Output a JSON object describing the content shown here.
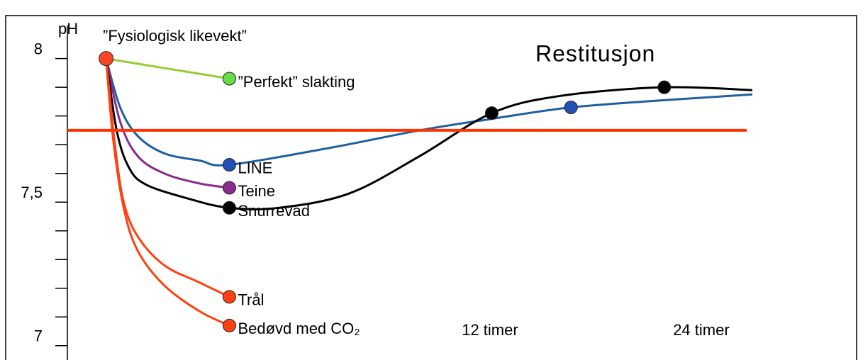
{
  "chart_data": {
    "type": "line",
    "title": "Restitusjon",
    "y_label": "pH",
    "start_label": "”Fysiologisk likevekt”",
    "ylim": [
      6.95,
      8.13
    ],
    "yticks": [
      7,
      {
        "value": 7.5,
        "label": "7,5"
      },
      8
    ],
    "yminor": [
      7.1,
      7.2,
      7.3,
      7.4,
      7.6,
      7.7,
      7.8,
      7.9
    ],
    "xlim": [
      -12,
      32.5
    ],
    "xticks": [
      {
        "value": 12,
        "label": "12 timer"
      },
      {
        "value": 24,
        "label": "24 timer"
      }
    ],
    "start": {
      "x": -9.8,
      "value": 8,
      "color": "#ff4422"
    },
    "hline": {
      "value": 7.75,
      "color": "#ff3300"
    },
    "series": [
      {
        "name": "”Perfekt” slakting",
        "color": "#99cc33",
        "marker_color": "#66dd44",
        "x": [
          -9.8,
          -2.8
        ],
        "values": [
          8,
          7.93
        ],
        "markers": [
          1
        ]
      },
      {
        "name": "LINE",
        "color": "#1f5fa0",
        "marker_color": "#2050b8",
        "x": [
          -9.8,
          -9,
          -8,
          -6.5,
          -4.5,
          -2.8,
          3,
          8,
          12.1,
          16.6,
          21.9,
          26.9
        ],
        "values": [
          8,
          7.83,
          7.73,
          7.67,
          7.645,
          7.63,
          7.69,
          7.75,
          7.79,
          7.83,
          7.855,
          7.875
        ],
        "markers": [
          5,
          9
        ]
      },
      {
        "name": "Teine",
        "color": "#8b2a8b",
        "marker_color": "#8b2a8b",
        "x": [
          -9.8,
          -9,
          -8,
          -6.5,
          -4.5,
          -2.8
        ],
        "values": [
          8,
          7.78,
          7.66,
          7.6,
          7.565,
          7.55
        ],
        "markers": [
          5
        ]
      },
      {
        "name": "Snurrevad",
        "color": "#000000",
        "marker_color": "#000000",
        "x": [
          -9.8,
          -9.2,
          -8.5,
          -7.5,
          -5,
          -2.8,
          0,
          4,
          8,
          12.1,
          16,
          21.9,
          26.9
        ],
        "values": [
          8,
          7.75,
          7.62,
          7.56,
          7.51,
          7.48,
          7.48,
          7.53,
          7.66,
          7.81,
          7.87,
          7.9,
          7.89
        ],
        "markers": [
          5,
          9,
          11
        ]
      },
      {
        "name": "Trål",
        "color": "#ff4010",
        "marker_color": "#ff4010",
        "x": [
          -9.8,
          -9.3,
          -8.8,
          -8,
          -6.5,
          -4.5,
          -2.8
        ],
        "values": [
          8,
          7.7,
          7.5,
          7.38,
          7.28,
          7.22,
          7.17
        ],
        "markers": [
          6
        ]
      },
      {
        "name": "Bedøvd med CO₂",
        "color": "#ff4010",
        "marker_color": "#ff4010",
        "x": [
          -9.8,
          -9.4,
          -8.8,
          -8,
          -6.5,
          -4.5,
          -2.8
        ],
        "values": [
          8,
          7.72,
          7.48,
          7.33,
          7.21,
          7.12,
          7.07
        ],
        "markers": [
          6
        ]
      }
    ]
  }
}
